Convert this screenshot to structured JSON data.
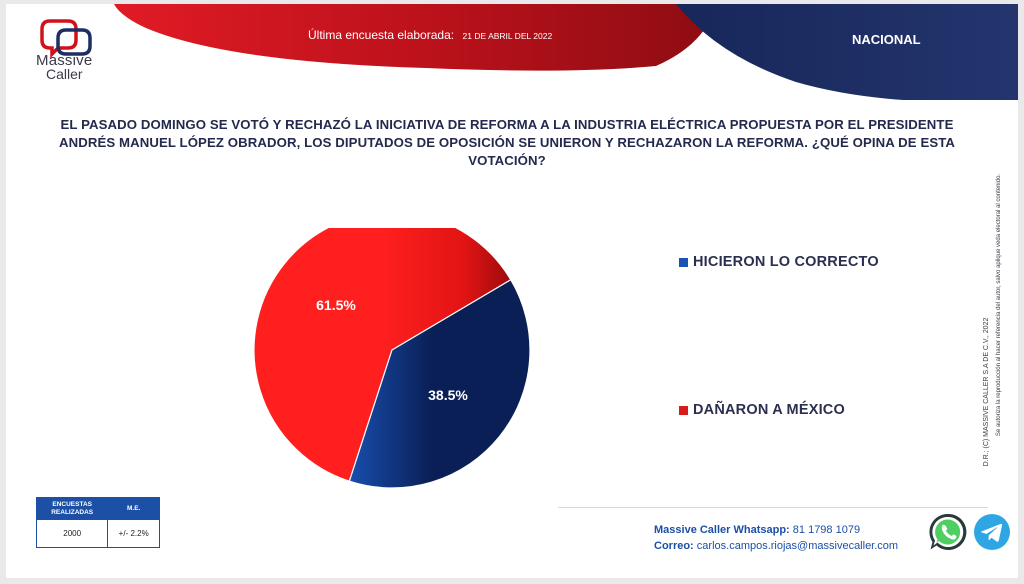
{
  "brand": {
    "name_line1": "Massive",
    "name_line2": "Caller"
  },
  "header": {
    "survey_label": "Última encuesta elaborada:",
    "survey_date": "21 DE ABRIL DEL 2022",
    "scope": "NACIONAL"
  },
  "question": "EL PASADO DOMINGO SE VOTÓ Y RECHAZÓ LA INICIATIVA DE REFORMA A LA INDUSTRIA ELÉCTRICA PROPUESTA POR EL PRESIDENTE ANDRÉS MANUEL LÓPEZ OBRADOR, LOS DIPUTADOS DE OPOSICIÓN SE UNIERON Y RECHAZARON LA REFORMA. ¿QUÉ OPINA DE ESTA VOTACIÓN?",
  "chart_data": {
    "type": "pie",
    "categories": [
      "HICIERON LO CORRECTO",
      "DAÑARON A MÉXICO"
    ],
    "values": [
      38.5,
      61.5
    ],
    "data_labels": [
      "38.5%",
      "61.5%"
    ],
    "colors": [
      "#1a52b5",
      "#d81b1b"
    ],
    "legend_position": "right"
  },
  "side_note": {
    "line1": "D.R.; (C) MASSIVE CALLER S.A DE C.V., 2022",
    "line2": "Se autoriza la reproducción al hacer referencia del autor, salvo aplique veda electoral al contenido."
  },
  "stats": {
    "col1_header_line1": "ENCUESTAS",
    "col1_header_line2": "REALIZADAS",
    "col2_header": "M.E.",
    "col1_value": "2000",
    "col2_value": "+/- 2.2%"
  },
  "contact": {
    "whatsapp_label": "Massive Caller Whatsapp:",
    "whatsapp_value": "81 1798 1079",
    "email_label": "Correo:",
    "email_value": "carlos.campos.riojas@massivecaller.com"
  },
  "icons": {
    "whatsapp": "whatsapp-icon",
    "telegram": "telegram-icon"
  },
  "colors": {
    "banner_red": "#c0111a",
    "banner_navy": "#1e2d63",
    "accent_blue": "#1c4fa6"
  }
}
